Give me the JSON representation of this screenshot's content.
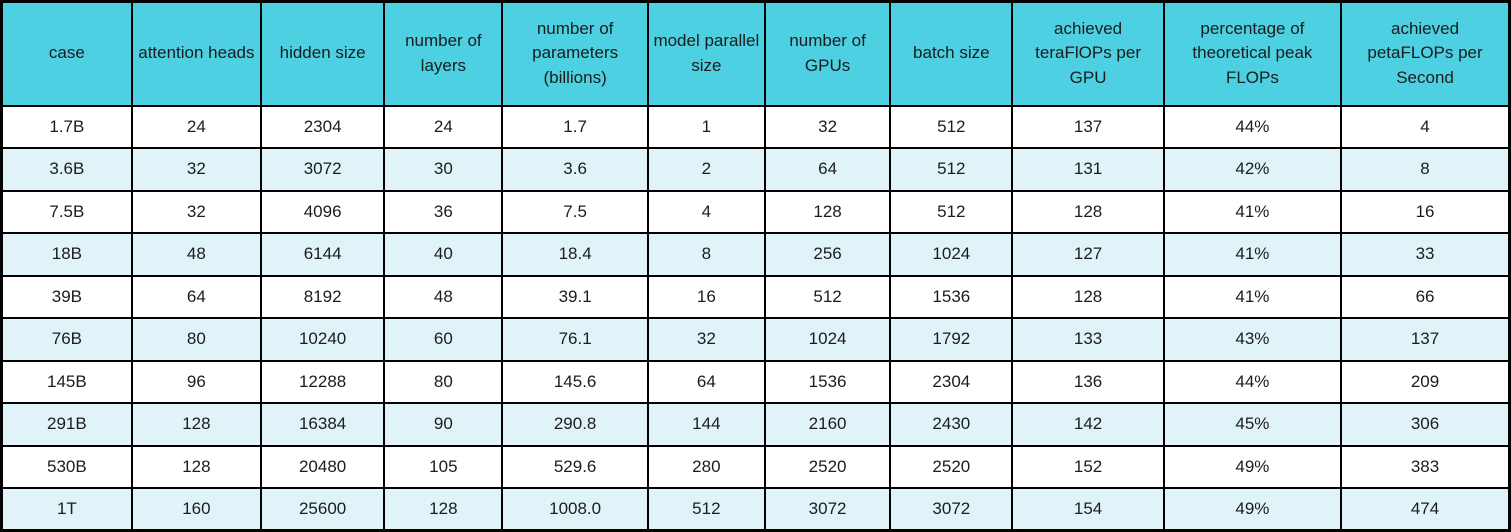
{
  "chart_data": {
    "type": "table",
    "columns": [
      "case",
      "attention heads",
      "hidden size",
      "number of layers",
      "number of parameters (billions)",
      "model parallel size",
      "number of GPUs",
      "batch size",
      "achieved teraFlOPs per GPU",
      "percentage of theoretical peak FLOPs",
      "achieved petaFLOPs per Second"
    ],
    "rows": [
      [
        "1.7B",
        "24",
        "2304",
        "24",
        "1.7",
        "1",
        "32",
        "512",
        "137",
        "44%",
        "4"
      ],
      [
        "3.6B",
        "32",
        "3072",
        "30",
        "3.6",
        "2",
        "64",
        "512",
        "131",
        "42%",
        "8"
      ],
      [
        "7.5B",
        "32",
        "4096",
        "36",
        "7.5",
        "4",
        "128",
        "512",
        "128",
        "41%",
        "16"
      ],
      [
        "18B",
        "48",
        "6144",
        "40",
        "18.4",
        "8",
        "256",
        "1024",
        "127",
        "41%",
        "33"
      ],
      [
        "39B",
        "64",
        "8192",
        "48",
        "39.1",
        "16",
        "512",
        "1536",
        "128",
        "41%",
        "66"
      ],
      [
        "76B",
        "80",
        "10240",
        "60",
        "76.1",
        "32",
        "1024",
        "1792",
        "133",
        "43%",
        "137"
      ],
      [
        "145B",
        "96",
        "12288",
        "80",
        "145.6",
        "64",
        "1536",
        "2304",
        "136",
        "44%",
        "209"
      ],
      [
        "291B",
        "128",
        "16384",
        "90",
        "290.8",
        "144",
        "2160",
        "2430",
        "142",
        "45%",
        "306"
      ],
      [
        "530B",
        "128",
        "20480",
        "105",
        "529.6",
        "280",
        "2520",
        "2520",
        "152",
        "49%",
        "383"
      ],
      [
        "1T",
        "160",
        "25600",
        "128",
        "1008.0",
        "512",
        "3072",
        "3072",
        "154",
        "49%",
        "474"
      ]
    ]
  },
  "styles": {
    "header_bg": "#4DD0E1",
    "row_even_bg": "#FFFFFF",
    "row_odd_bg": "#E0F3F8",
    "border_color": "#000000",
    "text_color": "#1C1C1C"
  }
}
